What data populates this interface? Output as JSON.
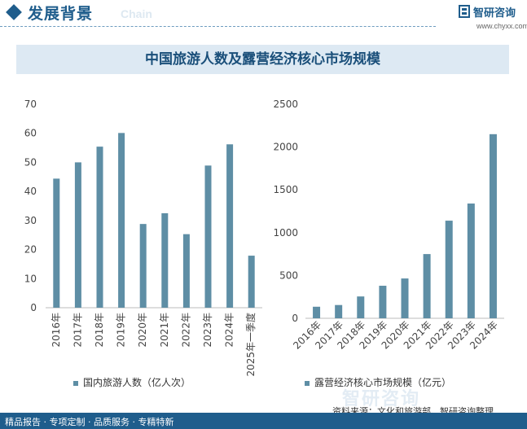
{
  "header": {
    "title": "发展背景",
    "watermark": "Chain",
    "logo_text": "智研咨询",
    "logo_url": "www.chyxx.com"
  },
  "page_title": "中国旅游人数及露营经济核心市场规模",
  "chart_data": [
    {
      "type": "bar",
      "categories": [
        "2016年",
        "2017年",
        "2018年",
        "2019年",
        "2020年",
        "2021年",
        "2022年",
        "2023年",
        "2024年",
        "2025年一季度"
      ],
      "series": [
        {
          "name": "国内旅游人数（亿人次）",
          "values": [
            44.4,
            50.0,
            55.4,
            60.1,
            28.8,
            32.5,
            25.3,
            48.9,
            56.2,
            17.9
          ]
        }
      ],
      "ylim": [
        0,
        70
      ],
      "yticks": [
        0,
        10,
        20,
        30,
        40,
        50,
        60,
        70
      ],
      "color": "#5e8ea5",
      "legend": "bottom"
    },
    {
      "type": "bar",
      "categories": [
        "2016年",
        "2017年",
        "2018年",
        "2019年",
        "2020年",
        "2021年",
        "2022年",
        "2023年",
        "2024年"
      ],
      "series": [
        {
          "name": "露营经济核心市场规模（亿元）",
          "values": [
            135,
            155,
            255,
            380,
            465,
            750,
            1140,
            1340,
            2150
          ]
        }
      ],
      "ylim": [
        0,
        2500
      ],
      "yticks": [
        0,
        500,
        1000,
        1500,
        2000,
        2500
      ],
      "color": "#5e8ea5",
      "legend": "bottom"
    }
  ],
  "source": "资料来源：文化和旅游部、智研咨询整理",
  "footer": {
    "text": "精品报告 · 专项定制 · 品质服务 · 专精特新",
    "watermark": "智研咨询"
  }
}
